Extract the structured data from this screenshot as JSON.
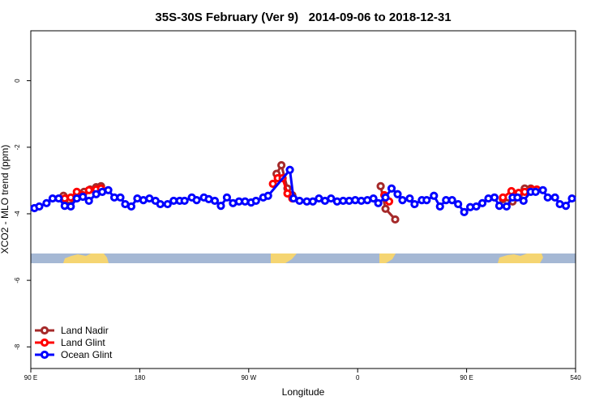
{
  "chart_data": {
    "type": "line",
    "title": "35S-30S February (Ver 9)   2014-09-06 to 2018-12-31",
    "x_label": "Longitude",
    "y_label": "XCO2 - MLO trend (ppm)",
    "xlim": [
      90,
      540
    ],
    "ylim": [
      -8.65,
      1.5
    ],
    "xticks": [
      {
        "value": 90,
        "label": "90 E"
      },
      180,
      {
        "value": 270,
        "label": "90 W"
      },
      {
        "value": 360,
        "label": "0"
      },
      {
        "value": 450,
        "label": "90 E"
      },
      540
    ],
    "yticks": [
      0,
      -2,
      -4,
      -6,
      -8
    ],
    "legend": "bottom-left",
    "series": [
      {
        "name": "Land Nadir",
        "color": "#a52a2a",
        "x": [
          117,
          122,
          128,
          134,
          139,
          144,
          148,
          null,
          293,
          297,
          302,
          306,
          null,
          379,
          383,
          391,
          null,
          480,
          488,
          493,
          498,
          503
        ],
        "values": [
          -3.46,
          -3.59,
          -3.44,
          -3.34,
          -3.27,
          -3.2,
          -3.17,
          null,
          -2.8,
          -2.54,
          -3.24,
          -3.44,
          null,
          -3.17,
          -3.85,
          -4.17,
          null,
          -3.56,
          -3.63,
          -3.44,
          -3.24,
          -3.24
        ]
      },
      {
        "name": "Land Glint",
        "color": "#ff0000",
        "x": [
          118,
          123,
          128,
          133,
          138,
          144,
          148,
          null,
          290,
          294,
          298,
          302,
          306,
          null,
          382,
          386,
          null,
          480,
          487,
          493,
          498,
          504,
          508
        ],
        "values": [
          -3.54,
          -3.51,
          -3.34,
          -3.44,
          -3.29,
          -3.27,
          -3.24,
          null,
          -3.1,
          -2.93,
          -2.93,
          -3.39,
          -3.54,
          null,
          -3.44,
          -3.63,
          null,
          -3.51,
          -3.32,
          -3.37,
          -3.34,
          -3.27,
          -3.27
        ]
      },
      {
        "name": "Ocean Glint",
        "color": "#0000ff",
        "x": [
          93,
          97,
          103,
          108,
          113,
          118,
          123,
          128,
          133,
          138,
          144,
          149,
          154,
          159,
          164,
          168,
          173,
          178,
          183,
          188,
          193,
          197,
          203,
          208,
          213,
          217,
          223,
          227,
          233,
          237,
          242,
          247,
          252,
          257,
          262,
          267,
          272,
          276,
          282,
          286,
          304,
          307,
          312,
          318,
          323,
          328,
          333,
          338,
          343,
          348,
          353,
          358,
          363,
          368,
          373,
          377,
          383,
          388,
          393,
          397,
          403,
          407,
          413,
          417,
          423,
          428,
          433,
          438,
          443,
          448,
          453,
          458,
          463,
          468,
          473,
          477,
          483,
          488,
          492,
          497,
          503,
          507,
          513,
          517,
          523,
          527,
          532,
          537
        ],
        "values": [
          -3.83,
          -3.78,
          -3.68,
          -3.54,
          -3.54,
          -3.76,
          -3.78,
          -3.54,
          -3.49,
          -3.61,
          -3.41,
          -3.34,
          -3.29,
          -3.51,
          -3.51,
          -3.71,
          -3.78,
          -3.54,
          -3.59,
          -3.54,
          -3.61,
          -3.71,
          -3.71,
          -3.61,
          -3.61,
          -3.61,
          -3.51,
          -3.59,
          -3.51,
          -3.56,
          -3.61,
          -3.76,
          -3.51,
          -3.68,
          -3.63,
          -3.63,
          -3.66,
          -3.61,
          -3.51,
          -3.46,
          -2.68,
          -3.54,
          -3.61,
          -3.63,
          -3.63,
          -3.54,
          -3.61,
          -3.54,
          -3.63,
          -3.61,
          -3.61,
          -3.59,
          -3.61,
          -3.59,
          -3.54,
          -3.68,
          -3.51,
          -3.24,
          -3.41,
          -3.59,
          -3.54,
          -3.71,
          -3.59,
          -3.59,
          -3.46,
          -3.78,
          -3.59,
          -3.59,
          -3.71,
          -3.95,
          -3.8,
          -3.78,
          -3.68,
          -3.54,
          -3.51,
          -3.76,
          -3.78,
          -3.51,
          -3.51,
          -3.61,
          -3.34,
          -3.34,
          -3.29,
          -3.51,
          -3.51,
          -3.71,
          -3.76,
          -3.54
        ]
      }
    ]
  }
}
